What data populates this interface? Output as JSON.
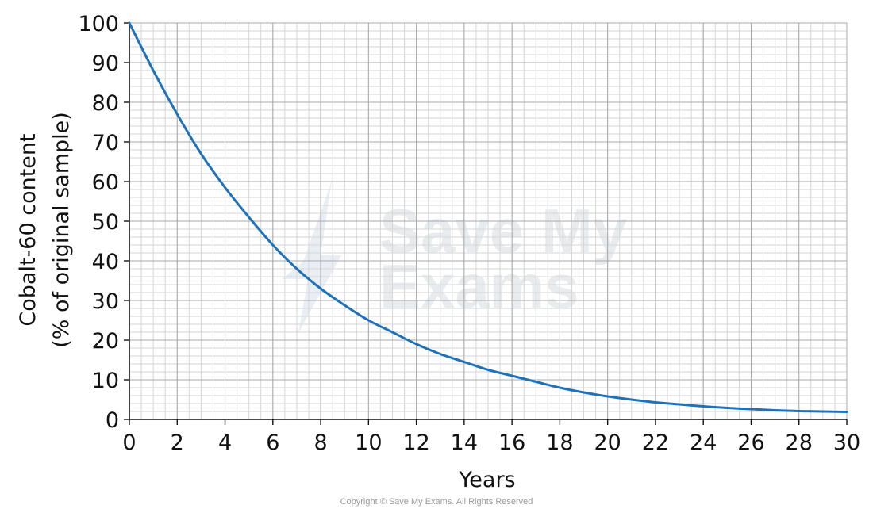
{
  "chart_data": {
    "type": "line",
    "xlabel": "Years",
    "ylabel": [
      "Cobalt-60 content",
      "(% of original sample)"
    ],
    "xlim": [
      0,
      30
    ],
    "ylim": [
      0,
      100
    ],
    "x_ticks": [
      0,
      2,
      4,
      6,
      8,
      10,
      12,
      14,
      16,
      18,
      20,
      22,
      24,
      26,
      28,
      30
    ],
    "y_ticks": [
      0,
      10,
      20,
      30,
      40,
      50,
      60,
      70,
      80,
      90,
      100
    ],
    "x_minor_step": 0.5,
    "y_minor_step": 2,
    "grid": true,
    "series": [
      {
        "color": "#1f72b8",
        "x": [
          0,
          1,
          2,
          3,
          4,
          5,
          6,
          7,
          8,
          9,
          10,
          11,
          12,
          13,
          14,
          15,
          16,
          17,
          18,
          19,
          20,
          21,
          22,
          23,
          24,
          25,
          26,
          27,
          28,
          29,
          30
        ],
        "y": [
          100,
          88,
          77,
          67,
          58.5,
          51,
          44,
          38,
          33,
          28.8,
          25,
          22,
          19,
          16.5,
          14.5,
          12.5,
          11,
          9.5,
          8,
          6.8,
          5.8,
          5,
          4.3,
          3.8,
          3.3,
          2.9,
          2.6,
          2.3,
          2.1,
          2,
          1.9
        ]
      }
    ]
  },
  "watermark": {
    "line1": "Save My",
    "line2": "Exams"
  },
  "copyright": "Copyright © Save My Exams. All Rights Reserved"
}
